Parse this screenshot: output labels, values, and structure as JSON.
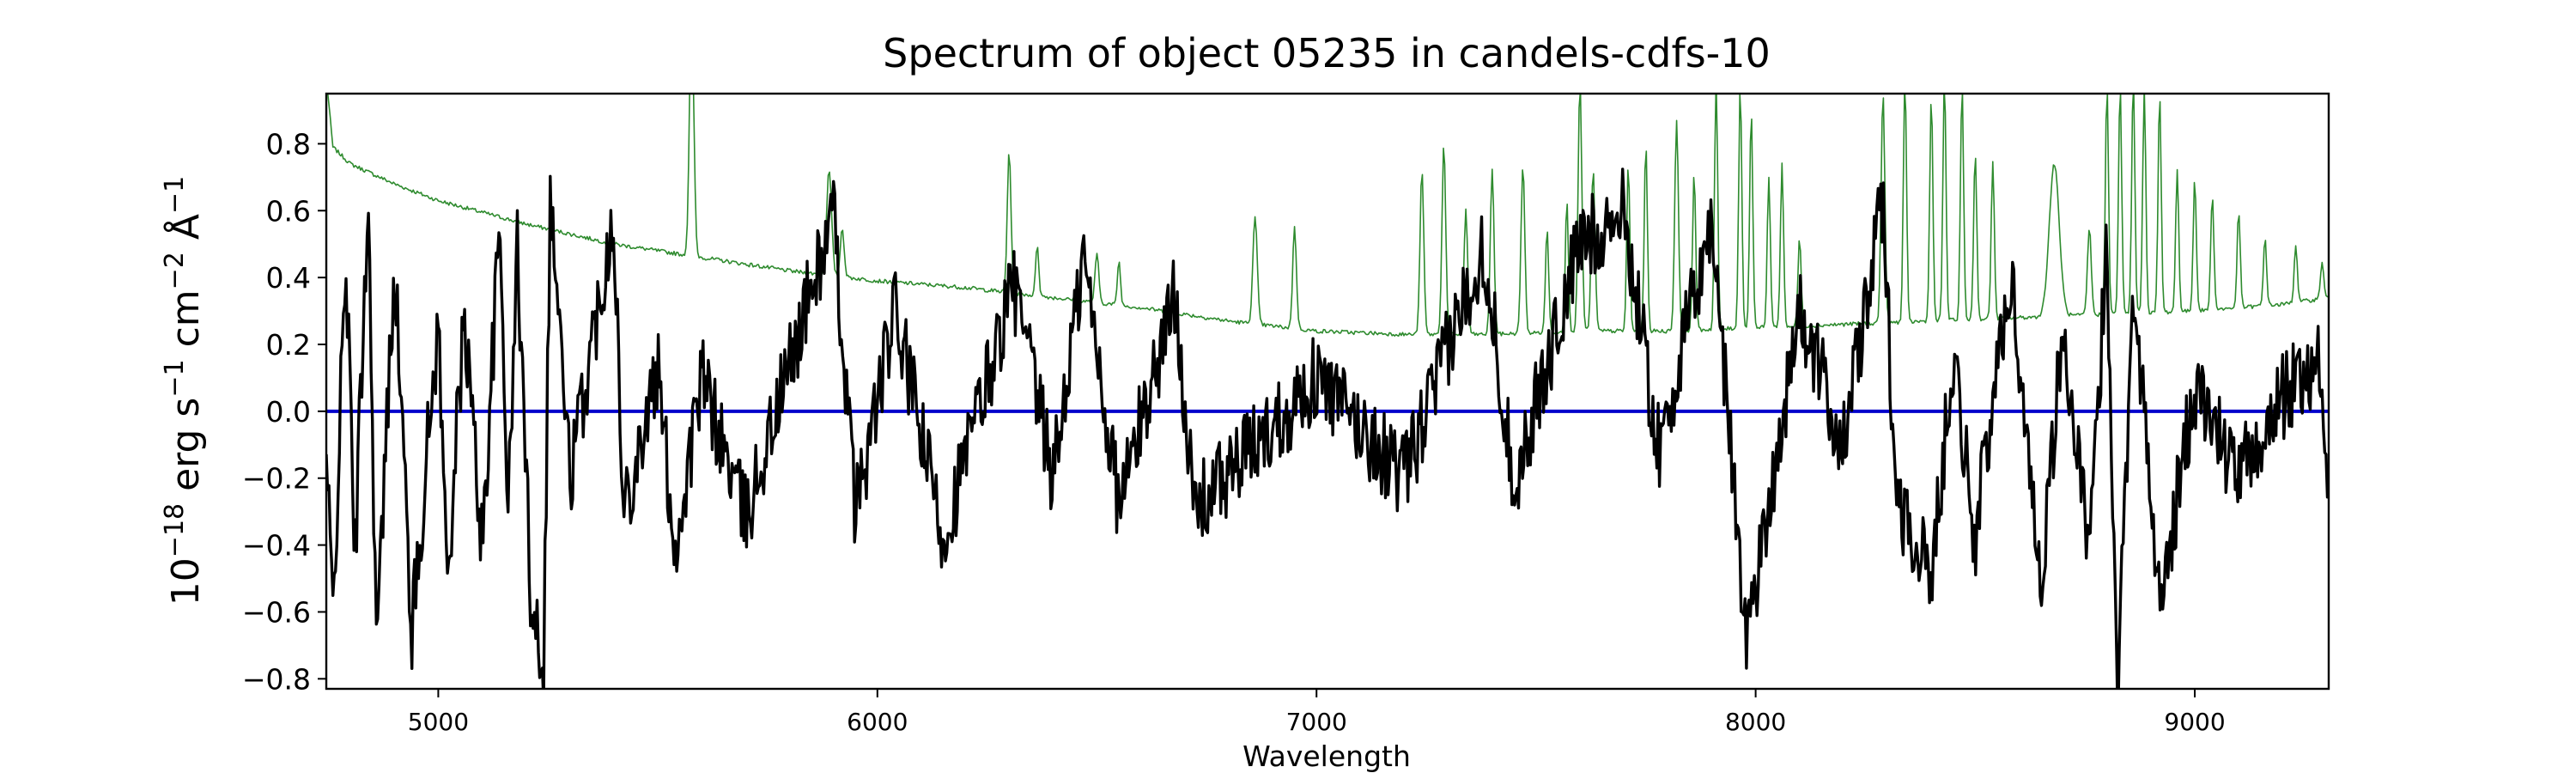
{
  "chart_data": {
    "type": "line",
    "title": "Spectrum of object 05235 in candels-cdfs-10",
    "xlabel": "Wavelength",
    "ylabel_base": "10",
    "ylabel_exp": "−18",
    "ylabel_unit1": " erg s",
    "ylabel_unit1_exp": "−1",
    "ylabel_unit2": " cm",
    "ylabel_unit2_exp": "−2",
    "ylabel_unit3": " Å",
    "ylabel_unit3_exp": "−1",
    "xlim": [
      4745,
      9305
    ],
    "ylim": [
      -0.83,
      0.95
    ],
    "xticks": [
      5000,
      6000,
      7000,
      8000,
      9000
    ],
    "xtick_labels": [
      "5000",
      "6000",
      "7000",
      "8000",
      "9000"
    ],
    "yticks": [
      -0.8,
      -0.6,
      -0.4,
      -0.2,
      0.0,
      0.2,
      0.4,
      0.6,
      0.8
    ],
    "ytick_labels": [
      "−0.8",
      "−0.6",
      "−0.4",
      "−0.2",
      "0.0",
      "0.2",
      "0.4",
      "0.6",
      "0.8"
    ],
    "grid": false,
    "series": [
      {
        "role": "zero-line",
        "color": "#0000cc",
        "x": [
          4745,
          9305
        ],
        "y": [
          0.0,
          0.0
        ]
      },
      {
        "role": "error",
        "color": "#2e8b2e",
        "continuum": [
          [
            4745,
            1.0
          ],
          [
            4760,
            0.79
          ],
          [
            4800,
            0.74
          ],
          [
            4900,
            0.68
          ],
          [
            5000,
            0.63
          ],
          [
            5200,
            0.56
          ],
          [
            5400,
            0.5
          ],
          [
            5600,
            0.46
          ],
          [
            5800,
            0.42
          ],
          [
            6000,
            0.39
          ],
          [
            6200,
            0.37
          ],
          [
            6400,
            0.34
          ],
          [
            6600,
            0.31
          ],
          [
            6800,
            0.27
          ],
          [
            7000,
            0.24
          ],
          [
            7200,
            0.23
          ],
          [
            7400,
            0.23
          ],
          [
            7600,
            0.24
          ],
          [
            7800,
            0.24
          ],
          [
            8000,
            0.25
          ],
          [
            8200,
            0.26
          ],
          [
            8400,
            0.27
          ],
          [
            8600,
            0.28
          ],
          [
            8800,
            0.29
          ],
          [
            9000,
            0.3
          ],
          [
            9200,
            0.32
          ],
          [
            9305,
            0.34
          ]
        ],
        "peaks": [
          [
            5577,
            1.2,
            7
          ],
          [
            5890,
            0.72,
            8
          ],
          [
            5920,
            0.55,
            6
          ],
          [
            6300,
            0.78,
            6
          ],
          [
            6364,
            0.5,
            5
          ],
          [
            6500,
            0.47,
            6
          ],
          [
            6550,
            0.45,
            5
          ],
          [
            6860,
            0.58,
            7
          ],
          [
            6950,
            0.55,
            6
          ],
          [
            7240,
            0.72,
            6
          ],
          [
            7290,
            0.8,
            6
          ],
          [
            7340,
            0.6,
            6
          ],
          [
            7400,
            0.72,
            6
          ],
          [
            7470,
            0.74,
            6
          ],
          [
            7525,
            0.55,
            5
          ],
          [
            7570,
            0.63,
            5
          ],
          [
            7600,
            0.98,
            6
          ],
          [
            7630,
            0.72,
            6
          ],
          [
            7710,
            0.74,
            5
          ],
          [
            7750,
            0.8,
            5
          ],
          [
            7820,
            0.87,
            6
          ],
          [
            7860,
            0.72,
            5
          ],
          [
            7910,
            1.0,
            5
          ],
          [
            7965,
            0.98,
            5
          ],
          [
            7990,
            0.9,
            5
          ],
          [
            8030,
            0.7,
            5
          ],
          [
            8060,
            0.74,
            5
          ],
          [
            8100,
            0.52,
            5
          ],
          [
            8290,
            0.95,
            6
          ],
          [
            8340,
            1.0,
            5
          ],
          [
            8400,
            0.95,
            5
          ],
          [
            8430,
            1.0,
            5
          ],
          [
            8470,
            0.98,
            5
          ],
          [
            8500,
            0.78,
            5
          ],
          [
            8540,
            0.75,
            5
          ],
          [
            8680,
            0.74,
            16
          ],
          [
            8760,
            0.55,
            6
          ],
          [
            8800,
            0.98,
            5
          ],
          [
            8830,
            0.98,
            5
          ],
          [
            8860,
            1.0,
            5
          ],
          [
            8885,
            0.97,
            5
          ],
          [
            8920,
            0.95,
            5
          ],
          [
            8960,
            0.72,
            5
          ],
          [
            9000,
            0.7,
            5
          ],
          [
            9040,
            0.65,
            5
          ],
          [
            9100,
            0.6,
            5
          ],
          [
            9160,
            0.52,
            5
          ],
          [
            9230,
            0.5,
            5
          ],
          [
            9290,
            0.45,
            5
          ]
        ]
      },
      {
        "role": "flux",
        "color": "#000000",
        "anchors": [
          [
            4745,
            -0.15
          ],
          [
            4760,
            -0.6
          ],
          [
            4790,
            0.46
          ],
          [
            4810,
            -0.45
          ],
          [
            4840,
            0.66
          ],
          [
            4860,
            -0.72
          ],
          [
            4900,
            0.46
          ],
          [
            4940,
            -0.66
          ],
          [
            5000,
            0.27
          ],
          [
            5020,
            -0.5
          ],
          [
            5060,
            0.28
          ],
          [
            5100,
            -0.4
          ],
          [
            5140,
            0.55
          ],
          [
            5160,
            -0.3
          ],
          [
            5180,
            0.5
          ],
          [
            5210,
            -0.52
          ],
          [
            5240,
            -0.75
          ],
          [
            5255,
            0.65
          ],
          [
            5300,
            -0.2
          ],
          [
            5360,
            0.28
          ],
          [
            5400,
            0.61
          ],
          [
            5420,
            -0.3
          ],
          [
            5500,
            0.12
          ],
          [
            5540,
            -0.42
          ],
          [
            5600,
            0.1
          ],
          [
            5700,
            -0.32
          ],
          [
            5850,
            0.37
          ],
          [
            5900,
            0.58
          ],
          [
            5950,
            -0.3
          ],
          [
            6040,
            0.3
          ],
          [
            6150,
            -0.38
          ],
          [
            6310,
            0.38
          ],
          [
            6400,
            -0.2
          ],
          [
            6470,
            0.46
          ],
          [
            6550,
            -0.28
          ],
          [
            6680,
            0.36
          ],
          [
            6720,
            -0.3
          ],
          [
            7000,
            0.1
          ],
          [
            7200,
            -0.2
          ],
          [
            7380,
            0.5
          ],
          [
            7450,
            -0.22
          ],
          [
            7600,
            0.5
          ],
          [
            7700,
            0.6
          ],
          [
            7780,
            -0.12
          ],
          [
            7900,
            0.57
          ],
          [
            7980,
            -0.68
          ],
          [
            8100,
            0.3
          ],
          [
            8200,
            -0.1
          ],
          [
            8290,
            0.63
          ],
          [
            8320,
            -0.25
          ],
          [
            8400,
            -0.5
          ],
          [
            8450,
            0.18
          ],
          [
            8500,
            -0.38
          ],
          [
            8580,
            0.42
          ],
          [
            8650,
            -0.5
          ],
          [
            8700,
            0.25
          ],
          [
            8760,
            -0.45
          ],
          [
            8800,
            0.5
          ],
          [
            8825,
            -0.83
          ],
          [
            8860,
            0.41
          ],
          [
            8920,
            -0.6
          ],
          [
            9000,
            0.08
          ],
          [
            9100,
            -0.2
          ],
          [
            9200,
            0.04
          ],
          [
            9280,
            0.16
          ],
          [
            9305,
            -0.26
          ]
        ],
        "noise_amplitude": 0.13
      }
    ]
  }
}
